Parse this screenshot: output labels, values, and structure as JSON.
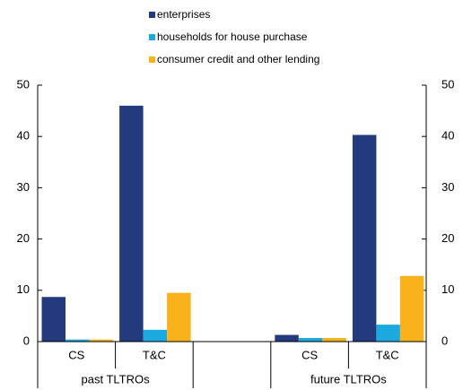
{
  "chart_data": {
    "type": "bar",
    "categories": [
      "CS",
      "T&C",
      null,
      "CS",
      "T&C"
    ],
    "groups": [
      "past TLTROs",
      "future TLTROs"
    ],
    "series": [
      {
        "name": "enterprises",
        "color": "#233a7c",
        "values": [
          8.7,
          46,
          null,
          1.3,
          40.3
        ]
      },
      {
        "name": "households for house purchase",
        "color": "#1ba9e0",
        "values": [
          0.4,
          2.3,
          null,
          0.7,
          3.3
        ]
      },
      {
        "name": "consumer credit and other lending",
        "color": "#f8b21c",
        "values": [
          0.4,
          9.5,
          null,
          0.7,
          12.8
        ]
      }
    ],
    "ylim": [
      0,
      50
    ],
    "yticks": [
      0,
      10,
      20,
      30,
      40,
      50
    ],
    "y2lim": [
      0,
      50
    ],
    "y2ticks": [
      0,
      10,
      20,
      30,
      40,
      50
    ],
    "grid": false,
    "legend": "top"
  }
}
